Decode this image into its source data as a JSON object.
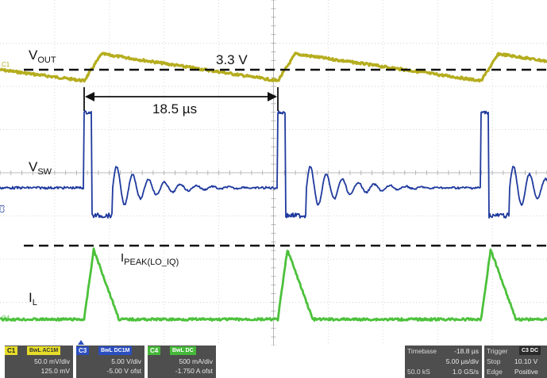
{
  "annotations": {
    "vout_label": "V",
    "vout_sub": "OUT",
    "vsw_label": "V",
    "vsw_sub": "SW",
    "il_label": "I",
    "il_sub": "L",
    "ipeak_label": "I",
    "ipeak_sub": "PEAK(LO_IQ)",
    "voltage_level": "3.3 V",
    "period_label": "18.5 µs"
  },
  "channel_markers": {
    "c1": "C1",
    "c3": "C3",
    "c4": "C4"
  },
  "colors": {
    "c1": "#b5ad1e",
    "c3": "#1f3a9e",
    "c4": "#4cc13b",
    "grid": "#c8c8c8",
    "dashed": "#111111"
  },
  "channels": [
    {
      "tag": "C1",
      "mode": "BwL AC1M",
      "scale": "50.0 mV/div",
      "offset": "125.0 mV"
    },
    {
      "tag": "C3",
      "mode": "BwL DC1M",
      "scale": "5.00 V/div",
      "offset": "-5.00 V ofst"
    },
    {
      "tag": "C4",
      "mode": "BwL DC",
      "scale": "500 mA/div",
      "offset": "-1.750 A ofst"
    }
  ],
  "timebase": {
    "label": "Timebase",
    "delay": "-18.8 µs",
    "scale": "5.00 µs/div",
    "samples": "50.0 kS",
    "rate": "1.0 GS/s"
  },
  "trigger": {
    "label": "Trigger",
    "source": "C3 DC",
    "mode_label": "Stop",
    "level": "10.10 V",
    "type_label": "Edge",
    "slope": "Positive"
  }
}
